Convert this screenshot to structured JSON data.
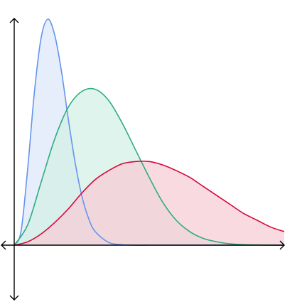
{
  "chart_data": {
    "type": "area",
    "title": "",
    "xlabel": "",
    "ylabel": "",
    "xlim": [
      0,
      1
    ],
    "ylim": [
      -0.25,
      1
    ],
    "grid": false,
    "legend": "none",
    "series": [
      {
        "color": "#6495ED",
        "fill": "#DCE6FA",
        "points": [
          [
            0,
            0
          ],
          [
            0.025,
            0.06
          ],
          [
            0.05,
            0.34
          ],
          [
            0.075,
            0.68
          ],
          [
            0.1,
            0.92
          ],
          [
            0.125,
            1.0
          ],
          [
            0.15,
            0.93
          ],
          [
            0.175,
            0.77
          ],
          [
            0.2,
            0.56
          ],
          [
            0.225,
            0.37
          ],
          [
            0.25,
            0.22
          ],
          [
            0.275,
            0.12
          ],
          [
            0.3,
            0.06
          ],
          [
            0.35,
            0.012
          ],
          [
            0.4,
            0.002
          ],
          [
            0.45,
            0
          ],
          [
            0.5,
            0
          ],
          [
            0.6,
            0
          ],
          [
            0.7,
            0
          ],
          [
            0.8,
            0
          ],
          [
            0.9,
            0
          ],
          [
            1.0,
            0
          ]
        ]
      },
      {
        "color": "#2EAD7E",
        "fill": "#D2F0E4",
        "points": [
          [
            0,
            0
          ],
          [
            0.05,
            0.09
          ],
          [
            0.1,
            0.28
          ],
          [
            0.15,
            0.47
          ],
          [
            0.2,
            0.61
          ],
          [
            0.25,
            0.68
          ],
          [
            0.3,
            0.69
          ],
          [
            0.35,
            0.64
          ],
          [
            0.4,
            0.54
          ],
          [
            0.45,
            0.42
          ],
          [
            0.5,
            0.3
          ],
          [
            0.55,
            0.19
          ],
          [
            0.6,
            0.11
          ],
          [
            0.65,
            0.06
          ],
          [
            0.7,
            0.03
          ],
          [
            0.75,
            0.015
          ],
          [
            0.8,
            0.006
          ],
          [
            0.85,
            0.002
          ],
          [
            0.9,
            0.001
          ],
          [
            0.95,
            0
          ],
          [
            1.0,
            0
          ]
        ]
      },
      {
        "color": "#D6073A",
        "fill": "#F8CCD6",
        "points": [
          [
            0,
            0
          ],
          [
            0.05,
            0.015
          ],
          [
            0.1,
            0.05
          ],
          [
            0.15,
            0.1
          ],
          [
            0.2,
            0.16
          ],
          [
            0.25,
            0.23
          ],
          [
            0.3,
            0.29
          ],
          [
            0.35,
            0.33
          ],
          [
            0.4,
            0.36
          ],
          [
            0.45,
            0.37
          ],
          [
            0.5,
            0.37
          ],
          [
            0.55,
            0.355
          ],
          [
            0.6,
            0.33
          ],
          [
            0.65,
            0.3
          ],
          [
            0.7,
            0.26
          ],
          [
            0.75,
            0.22
          ],
          [
            0.8,
            0.18
          ],
          [
            0.85,
            0.14
          ],
          [
            0.9,
            0.11
          ],
          [
            0.95,
            0.08
          ],
          [
            1.0,
            0.06
          ]
        ]
      }
    ],
    "axes": {
      "color": "#000000",
      "x_arrows": [
        "left",
        "right"
      ],
      "y_arrows": [
        "up",
        "down"
      ]
    }
  }
}
